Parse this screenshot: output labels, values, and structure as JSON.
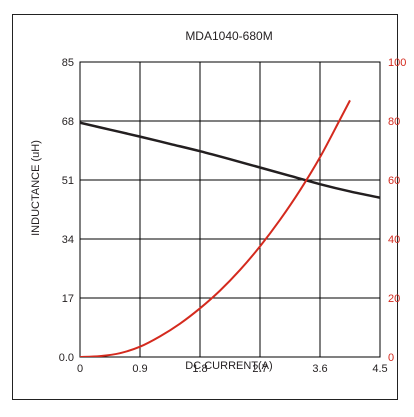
{
  "chart_data": {
    "type": "line",
    "title": "MDA1040-680M",
    "xlabel": "DC CURRENT(A)",
    "ylabel": "INDUCTANCE (uH)",
    "ylabel_right": "",
    "xlim": [
      0,
      4.5
    ],
    "ylim": [
      0,
      85
    ],
    "ylim_right": [
      0,
      100
    ],
    "x_ticks": [
      "0",
      "0.9",
      "1.8",
      "2.7",
      "3.6",
      "4.5"
    ],
    "y_ticks": [
      "0.0",
      "17",
      "34",
      "51",
      "68",
      "85"
    ],
    "y_ticks_right": [
      "0",
      "20",
      "40",
      "60",
      "80",
      "100"
    ],
    "grid": true,
    "colors": {
      "inductance": "#231f20",
      "temp_rise": "#d42a1e",
      "grid": "#000000"
    },
    "series": [
      {
        "axis": "left",
        "x": [
          0,
          0.45,
          0.9,
          1.35,
          1.8,
          2.25,
          2.7,
          3.15,
          3.6,
          4.05,
          4.5
        ],
        "values": [
          67.5,
          65.5,
          63.5,
          61.4,
          59.3,
          57.0,
          54.6,
          52.2,
          49.8,
          47.7,
          45.9
        ]
      },
      {
        "axis": "right",
        "x": [
          0,
          0.3,
          0.6,
          0.9,
          1.2,
          1.5,
          1.8,
          2.1,
          2.4,
          2.7,
          3.0,
          3.3,
          3.6,
          3.9,
          4.05
        ],
        "values": [
          0,
          0.3,
          1.3,
          3.5,
          7.0,
          11.3,
          16.5,
          22.5,
          29.5,
          37.5,
          46.5,
          56.5,
          67.7,
          80.5,
          87.0
        ]
      }
    ]
  }
}
